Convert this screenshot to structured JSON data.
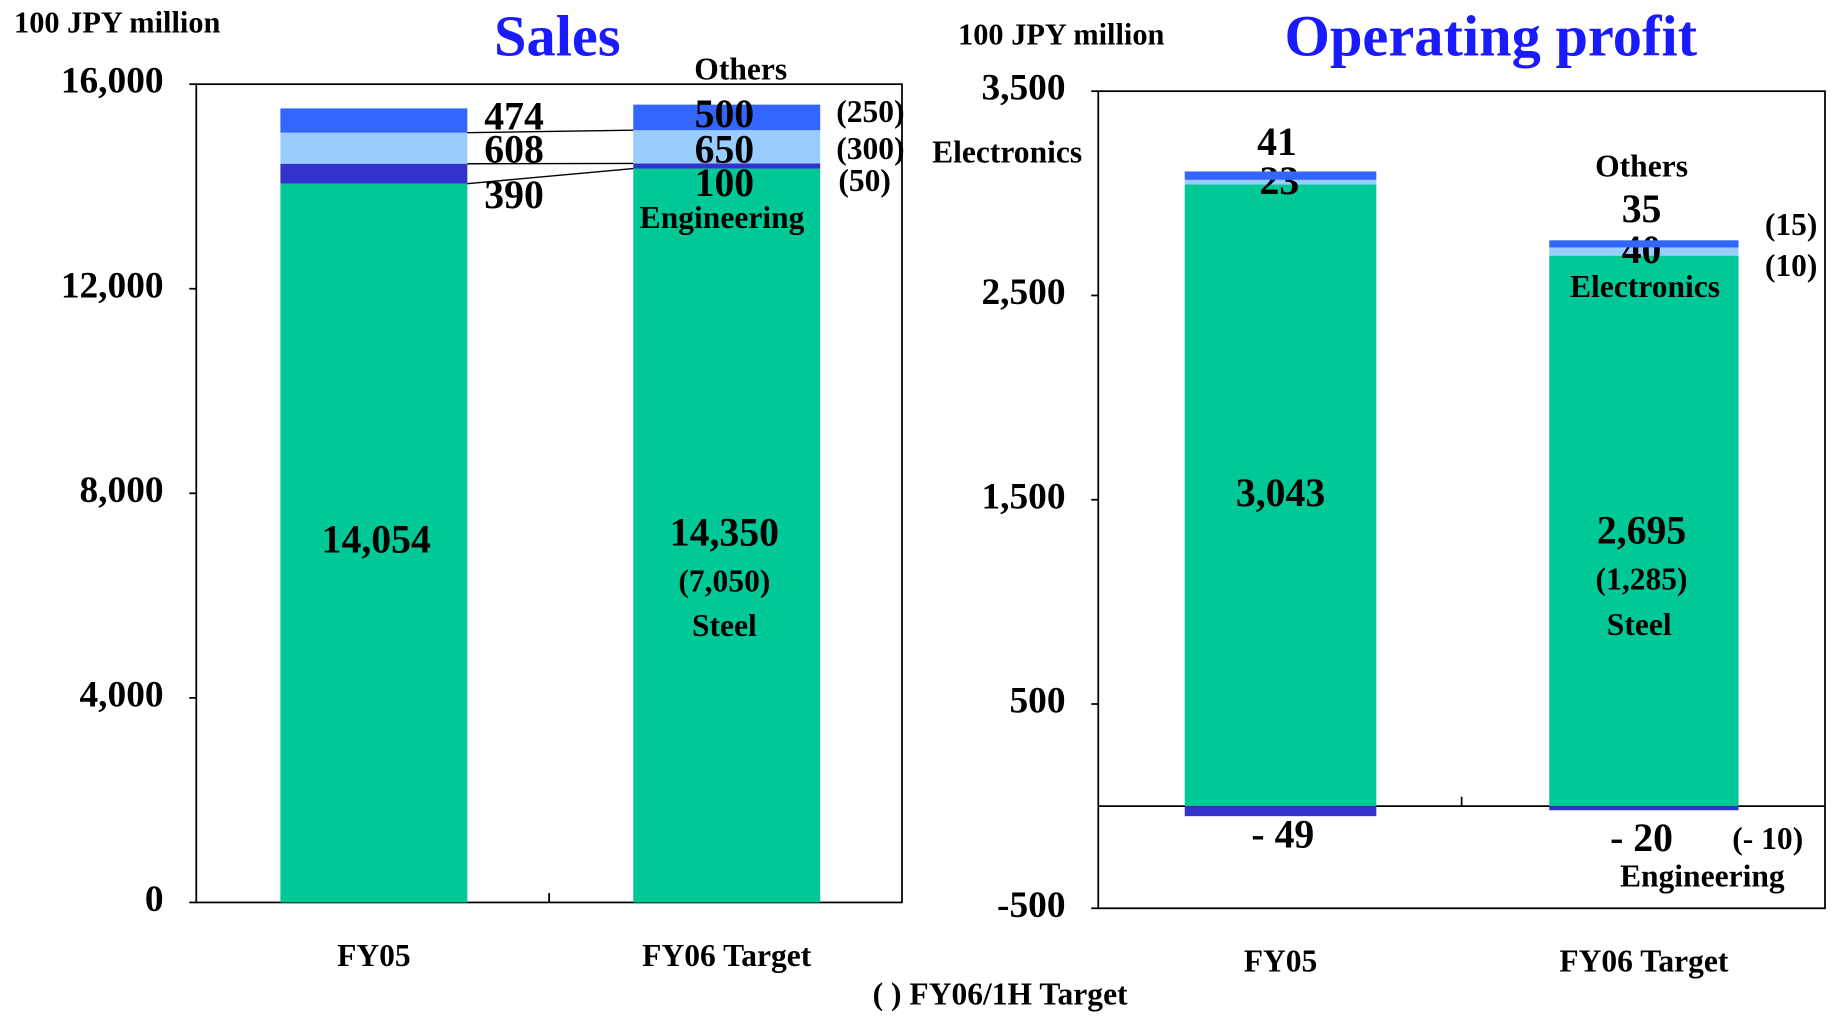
{
  "footnote": "( ) FY06/1H Target",
  "chart_data": [
    {
      "type": "bar",
      "stacked": true,
      "title": "Sales",
      "y_label": "100 JPY million",
      "categories": [
        "FY05",
        "FY06 Target"
      ],
      "ylim": [
        0,
        16000
      ],
      "yticks": [
        0,
        {
          "value": 4000,
          "label": "4,000"
        },
        {
          "value": 8000,
          "label": "8,000"
        },
        {
          "value": 12000,
          "label": "12,000"
        },
        {
          "value": 16000,
          "label": "16,000"
        }
      ],
      "series": [
        {
          "name": "Steel",
          "color": "#00c896",
          "values": [
            14054,
            14350
          ],
          "value_labels": [
            "14,054",
            "14,350"
          ],
          "h1_target_labels": [
            null,
            "(7,050)"
          ]
        },
        {
          "name": "Engineering",
          "color": "#3333cc",
          "values": [
            390,
            100
          ],
          "h1_target_labels": [
            null,
            "(50)"
          ]
        },
        {
          "name": "Electronics",
          "color": "#99ccff",
          "values": [
            608,
            650
          ],
          "h1_target_labels": [
            null,
            "(300)"
          ]
        },
        {
          "name": "Others",
          "color": "#3366ff",
          "values": [
            474,
            500
          ],
          "h1_target_labels": [
            null,
            "(250)"
          ]
        }
      ]
    },
    {
      "type": "bar",
      "stacked": true,
      "title": "Operating profit",
      "y_label": "100 JPY million",
      "categories": [
        "FY05",
        "FY06 Target"
      ],
      "ylim": [
        -500,
        3500
      ],
      "yticks": [
        -500,
        500,
        {
          "value": 1500,
          "label": "1,500"
        },
        {
          "value": 2500,
          "label": "2,500"
        },
        {
          "value": 3500,
          "label": "3,500"
        }
      ],
      "series": [
        {
          "name": "Steel",
          "color": "#00c896",
          "values": [
            3043,
            2695
          ],
          "value_labels": [
            "3,043",
            "2,695"
          ],
          "h1_target_labels": [
            null,
            "(1,285)"
          ]
        },
        {
          "name": "Engineering",
          "color": "#3333cc",
          "values": [
            -49,
            -20
          ],
          "value_labels": [
            "- 49",
            "- 20"
          ],
          "h1_target_labels": [
            null,
            "(- 10)"
          ]
        },
        {
          "name": "Electronics",
          "color": "#99ccff",
          "values": [
            23,
            40
          ],
          "h1_target_labels": [
            null,
            "(10)"
          ]
        },
        {
          "name": "Others",
          "color": "#3366ff",
          "values": [
            41,
            35
          ],
          "h1_target_labels": [
            null,
            "(15)"
          ]
        }
      ]
    }
  ]
}
